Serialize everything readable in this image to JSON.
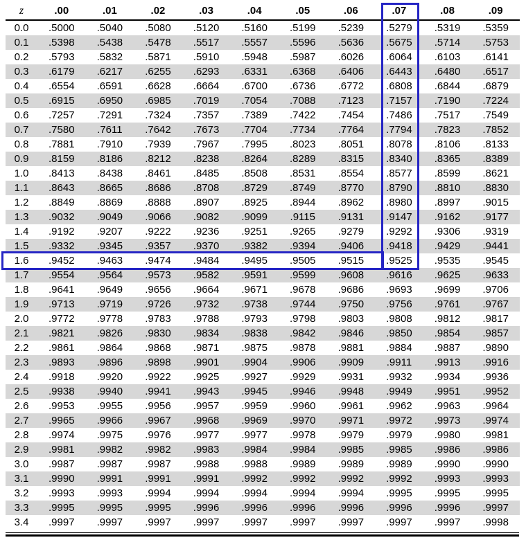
{
  "table": {
    "corner_label": "z",
    "columns": [
      ".00",
      ".01",
      ".02",
      ".03",
      ".04",
      ".05",
      ".06",
      ".07",
      ".08",
      ".09"
    ],
    "rows": [
      {
        "z": "0.0",
        "values": [
          ".5000",
          ".5040",
          ".5080",
          ".5120",
          ".5160",
          ".5199",
          ".5239",
          ".5279",
          ".5319",
          ".5359"
        ]
      },
      {
        "z": "0.1",
        "values": [
          ".5398",
          ".5438",
          ".5478",
          ".5517",
          ".5557",
          ".5596",
          ".5636",
          ".5675",
          ".5714",
          ".5753"
        ]
      },
      {
        "z": "0.2",
        "values": [
          ".5793",
          ".5832",
          ".5871",
          ".5910",
          ".5948",
          ".5987",
          ".6026",
          ".6064",
          ".6103",
          ".6141"
        ]
      },
      {
        "z": "0.3",
        "values": [
          ".6179",
          ".6217",
          ".6255",
          ".6293",
          ".6331",
          ".6368",
          ".6406",
          ".6443",
          ".6480",
          ".6517"
        ]
      },
      {
        "z": "0.4",
        "values": [
          ".6554",
          ".6591",
          ".6628",
          ".6664",
          ".6700",
          ".6736",
          ".6772",
          ".6808",
          ".6844",
          ".6879"
        ]
      },
      {
        "z": "0.5",
        "values": [
          ".6915",
          ".6950",
          ".6985",
          ".7019",
          ".7054",
          ".7088",
          ".7123",
          ".7157",
          ".7190",
          ".7224"
        ]
      },
      {
        "z": "0.6",
        "values": [
          ".7257",
          ".7291",
          ".7324",
          ".7357",
          ".7389",
          ".7422",
          ".7454",
          ".7486",
          ".7517",
          ".7549"
        ]
      },
      {
        "z": "0.7",
        "values": [
          ".7580",
          ".7611",
          ".7642",
          ".7673",
          ".7704",
          ".7734",
          ".7764",
          ".7794",
          ".7823",
          ".7852"
        ]
      },
      {
        "z": "0.8",
        "values": [
          ".7881",
          ".7910",
          ".7939",
          ".7967",
          ".7995",
          ".8023",
          ".8051",
          ".8078",
          ".8106",
          ".8133"
        ]
      },
      {
        "z": "0.9",
        "values": [
          ".8159",
          ".8186",
          ".8212",
          ".8238",
          ".8264",
          ".8289",
          ".8315",
          ".8340",
          ".8365",
          ".8389"
        ]
      },
      {
        "z": "1.0",
        "values": [
          ".8413",
          ".8438",
          ".8461",
          ".8485",
          ".8508",
          ".8531",
          ".8554",
          ".8577",
          ".8599",
          ".8621"
        ]
      },
      {
        "z": "1.1",
        "values": [
          ".8643",
          ".8665",
          ".8686",
          ".8708",
          ".8729",
          ".8749",
          ".8770",
          ".8790",
          ".8810",
          ".8830"
        ]
      },
      {
        "z": "1.2",
        "values": [
          ".8849",
          ".8869",
          ".8888",
          ".8907",
          ".8925",
          ".8944",
          ".8962",
          ".8980",
          ".8997",
          ".9015"
        ]
      },
      {
        "z": "1.3",
        "values": [
          ".9032",
          ".9049",
          ".9066",
          ".9082",
          ".9099",
          ".9115",
          ".9131",
          ".9147",
          ".9162",
          ".9177"
        ]
      },
      {
        "z": "1.4",
        "values": [
          ".9192",
          ".9207",
          ".9222",
          ".9236",
          ".9251",
          ".9265",
          ".9279",
          ".9292",
          ".9306",
          ".9319"
        ]
      },
      {
        "z": "1.5",
        "values": [
          ".9332",
          ".9345",
          ".9357",
          ".9370",
          ".9382",
          ".9394",
          ".9406",
          ".9418",
          ".9429",
          ".9441"
        ]
      },
      {
        "z": "1.6",
        "values": [
          ".9452",
          ".9463",
          ".9474",
          ".9484",
          ".9495",
          ".9505",
          ".9515",
          ".9525",
          ".9535",
          ".9545"
        ]
      },
      {
        "z": "1.7",
        "values": [
          ".9554",
          ".9564",
          ".9573",
          ".9582",
          ".9591",
          ".9599",
          ".9608",
          ".9616",
          ".9625",
          ".9633"
        ]
      },
      {
        "z": "1.8",
        "values": [
          ".9641",
          ".9649",
          ".9656",
          ".9664",
          ".9671",
          ".9678",
          ".9686",
          ".9693",
          ".9699",
          ".9706"
        ]
      },
      {
        "z": "1.9",
        "values": [
          ".9713",
          ".9719",
          ".9726",
          ".9732",
          ".9738",
          ".9744",
          ".9750",
          ".9756",
          ".9761",
          ".9767"
        ]
      },
      {
        "z": "2.0",
        "values": [
          ".9772",
          ".9778",
          ".9783",
          ".9788",
          ".9793",
          ".9798",
          ".9803",
          ".9808",
          ".9812",
          ".9817"
        ]
      },
      {
        "z": "2.1",
        "values": [
          ".9821",
          ".9826",
          ".9830",
          ".9834",
          ".9838",
          ".9842",
          ".9846",
          ".9850",
          ".9854",
          ".9857"
        ]
      },
      {
        "z": "2.2",
        "values": [
          ".9861",
          ".9864",
          ".9868",
          ".9871",
          ".9875",
          ".9878",
          ".9881",
          ".9884",
          ".9887",
          ".9890"
        ]
      },
      {
        "z": "2.3",
        "values": [
          ".9893",
          ".9896",
          ".9898",
          ".9901",
          ".9904",
          ".9906",
          ".9909",
          ".9911",
          ".9913",
          ".9916"
        ]
      },
      {
        "z": "2.4",
        "values": [
          ".9918",
          ".9920",
          ".9922",
          ".9925",
          ".9927",
          ".9929",
          ".9931",
          ".9932",
          ".9934",
          ".9936"
        ]
      },
      {
        "z": "2.5",
        "values": [
          ".9938",
          ".9940",
          ".9941",
          ".9943",
          ".9945",
          ".9946",
          ".9948",
          ".9949",
          ".9951",
          ".9952"
        ]
      },
      {
        "z": "2.6",
        "values": [
          ".9953",
          ".9955",
          ".9956",
          ".9957",
          ".9959",
          ".9960",
          ".9961",
          ".9962",
          ".9963",
          ".9964"
        ]
      },
      {
        "z": "2.7",
        "values": [
          ".9965",
          ".9966",
          ".9967",
          ".9968",
          ".9969",
          ".9970",
          ".9971",
          ".9972",
          ".9973",
          ".9974"
        ]
      },
      {
        "z": "2.8",
        "values": [
          ".9974",
          ".9975",
          ".9976",
          ".9977",
          ".9977",
          ".9978",
          ".9979",
          ".9979",
          ".9980",
          ".9981"
        ]
      },
      {
        "z": "2.9",
        "values": [
          ".9981",
          ".9982",
          ".9982",
          ".9983",
          ".9984",
          ".9984",
          ".9985",
          ".9985",
          ".9986",
          ".9986"
        ]
      },
      {
        "z": "3.0",
        "values": [
          ".9987",
          ".9987",
          ".9987",
          ".9988",
          ".9988",
          ".9989",
          ".9989",
          ".9989",
          ".9990",
          ".9990"
        ]
      },
      {
        "z": "3.1",
        "values": [
          ".9990",
          ".9991",
          ".9991",
          ".9991",
          ".9992",
          ".9992",
          ".9992",
          ".9992",
          ".9993",
          ".9993"
        ]
      },
      {
        "z": "3.2",
        "values": [
          ".9993",
          ".9993",
          ".9994",
          ".9994",
          ".9994",
          ".9994",
          ".9994",
          ".9995",
          ".9995",
          ".9995"
        ]
      },
      {
        "z": "3.3",
        "values": [
          ".9995",
          ".9995",
          ".9995",
          ".9996",
          ".9996",
          ".9996",
          ".9996",
          ".9996",
          ".9996",
          ".9997"
        ]
      },
      {
        "z": "3.4",
        "values": [
          ".9997",
          ".9997",
          ".9997",
          ".9997",
          ".9997",
          ".9997",
          ".9997",
          ".9997",
          ".9997",
          ".9998"
        ]
      }
    ]
  },
  "highlight": {
    "column_label": ".07",
    "row_label": "1.6",
    "intersection_value": ".9525",
    "box_color": "#2525c4"
  },
  "colors": {
    "row_alt_background": "#d7d7d7",
    "text": "#000000",
    "rule": "#000000"
  }
}
